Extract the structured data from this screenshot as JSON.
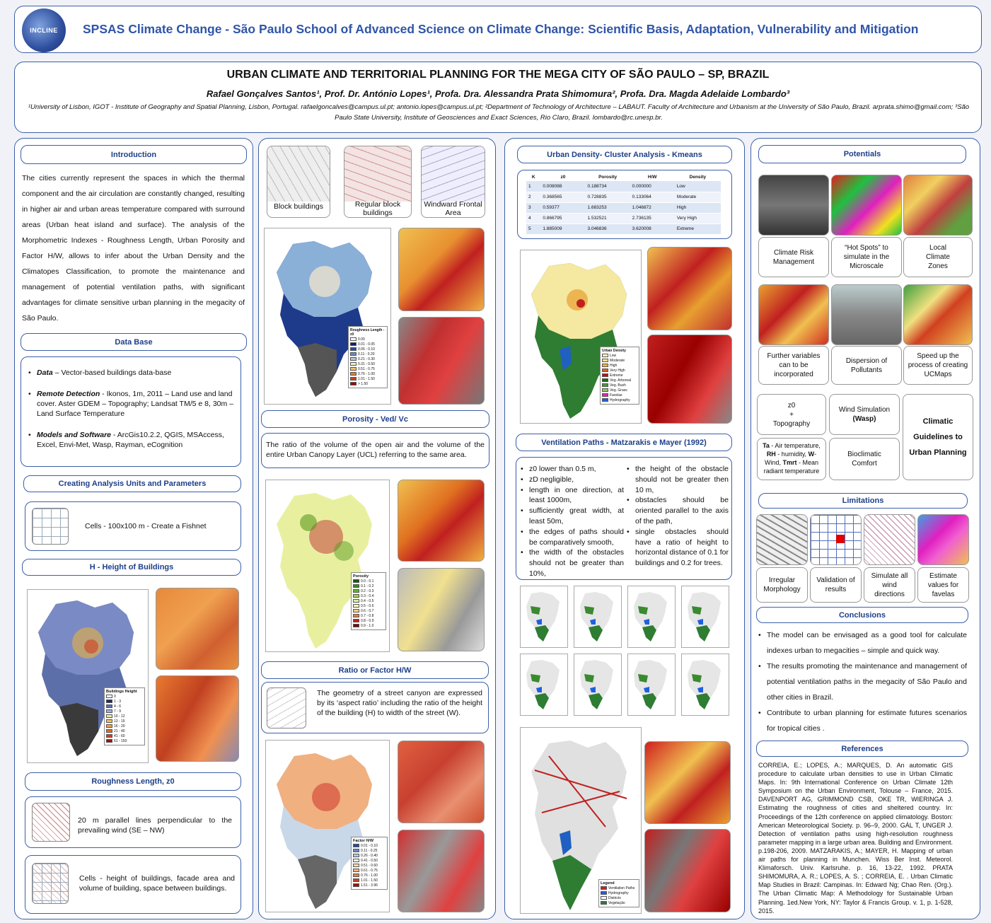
{
  "banner": {
    "logo_text": "INCLINE",
    "title": "SPSAS Climate Change - São Paulo School of Advanced Science on Climate Change: Scientific Basis, Adaptation, Vulnerability and Mitigation"
  },
  "header": {
    "title": "URBAN CLIMATE AND TERRITORIAL PLANNING FOR THE MEGA CITY OF SÃO PAULO – SP, BRAZIL",
    "authors": "Rafael Gonçalves Santos¹, Prof. Dr. António Lopes¹, Profa. Dra. Alessandra Prata Shimomura², Profa. Dra. Magda Adelaide Lombardo³",
    "affiliations": "¹University of Lisbon, IGOT - Institute of Geography and Spatial Planning, Lisbon, Portugal. rafaelgoncalves@campus.ul.pt; antonio.lopes@campus.ul.pt; ²Department of Technology of Architecture – LABAUT. Faculty of Architecture and Urbanism at the University of São Paulo, Brazil. arprata.shimo@gmail.com; ³São Paulo State University, Institute of Geosciences and Exact Sciences, Rio Claro, Brazil. lombardo@rc.unesp.br."
  },
  "col1": {
    "intro_heading": "Introduction",
    "intro_text": "The cities currently represent the spaces in which the thermal component and the air circulation are constantly changed, resulting in higher air and urban areas temperature compared with surround areas (Urban heat island and surface). The analysis of the Morphometric Indexes - Roughness Length, Urban Porosity and Factor H/W, allows to infer about the Urban Density and the Climatopes Classification, to promote the maintenance and management of potential ventilation paths, with significant advantages for climate sensitive urban planning in the megacity of São Paulo.",
    "database_heading": "Data Base",
    "db_items": [
      {
        "label": "Data",
        "text": " – Vector-based buildings data-base"
      },
      {
        "label": "Remote Detection",
        "text": " - Ikonos, 1m, 2011 – Land use and land cover. Aster GDEM – Topography; Landsat TM/5 e 8, 30m – Land Surface Temperature"
      },
      {
        "label": "Models and Software",
        "text": " - ArcGis10.2.2, QGIS, MSAccess, Excel, Envi-Met, Wasp, Rayman, eCognition"
      }
    ],
    "units_heading": "Creating Analysis Units and Parameters",
    "cells_text": "Cells -  100x100 m - Create a Fishnet",
    "height_heading": "H - Height of Buildings",
    "height_legend_title": "Buildings Height",
    "height_legend": [
      "0",
      "1 - 3",
      "4 - 6",
      "7 - 9",
      "10 - 12",
      "13 - 15",
      "16 - 20",
      "21 - 40",
      "41 - 60",
      "61 - 150"
    ],
    "roughness_heading": "Roughness Length, z0",
    "rough_text1": "20 m parallel lines perpendicular to the prevailing wind (SE – NW)",
    "rough_text2": "Cells - height of buildings, facade area and volume of building, space between buildings."
  },
  "col2": {
    "thumb_labels": [
      "Block buildings",
      "Regular block buildings",
      "Windward Frontal Area"
    ],
    "rl_legend_title": "Roughness Length - z0",
    "rl_legend": [
      "0.00",
      "0.01 - 0.05",
      "0.06 - 0.10",
      "0.11 - 0.20",
      "0.21 - 0.30",
      "0.31 - 0.50",
      "0.51 - 0.75",
      "0.76 - 1.00",
      "1.01 - 1.50",
      "> 1.50"
    ],
    "porosity_heading": "Porosity - Ved/ Vc",
    "porosity_text": "The ratio of the volume of the open air and the volume of the entire Urban Canopy Layer (UCL) referring to the same area.",
    "por_legend_title": "Porosity",
    "por_legend": [
      "0.0 - 0.1",
      "0.1 - 0.2",
      "0.2 - 0.3",
      "0.3 - 0.4",
      "0.4 - 0.5",
      "0.5 - 0.6",
      "0.6 - 0.7",
      "0.7 - 0.8",
      "0.8 - 0.9",
      "0.9 - 1.0"
    ],
    "hw_heading": "Ratio or Factor H/W",
    "hw_text": "The geometry of a street canyon are expressed by its ‘aspect ratio’ including the ratio of the height of the building (H) to width of the street (W).",
    "hw_legend_title": "Factor H/W",
    "hw_legend": [
      "0.01 - 0.10",
      "0.11 - 0.25",
      "0.26 - 0.40",
      "0.41 - 0.50",
      "0.51 - 0.60",
      "0.61 - 0.75",
      "0.76 - 1.00",
      "1.01 - 1.50",
      "1.51 - 3.96"
    ]
  },
  "col3": {
    "density_heading": "Urban Density- Cluster Analysis - Kmeans",
    "table_headers": [
      "K",
      "z0",
      "Porosity",
      "H/W",
      "Density"
    ],
    "table_rows": [
      [
        "1",
        "0.008088",
        "0.188734",
        "0.000000",
        "Low"
      ],
      [
        "2",
        "0.368565",
        "0.728835",
        "0.133064",
        "Moderate"
      ],
      [
        "3",
        "0.59377",
        "1.683253",
        "1.046872",
        "High"
      ],
      [
        "4",
        "0.866795",
        "1.532521",
        "2.736135",
        "Very High"
      ],
      [
        "5",
        "1.885009",
        "3.046836",
        "3.620008",
        "Extreme"
      ]
    ],
    "density_legend_title": "Urban Density",
    "density_legend": [
      "Low",
      "Moderate",
      "High",
      "Very High",
      "Extreme",
      "Veg. Arboreal",
      "Veg. Bush",
      "Veg. Grass",
      "Favelas",
      "Hydrography"
    ],
    "vent_heading": "Ventilation Paths - Matzarakis e Mayer (1992)",
    "vent_left": [
      "z0 lower than 0.5 m,",
      "zD negligible,",
      "length in one direction, at least 1000m,",
      "sufficiently great width, at least 50m,",
      "the edges of paths should be comparatively smooth,",
      "the width of the obstacles should not be greater than 10%,"
    ],
    "vent_right": [
      "the height of the obstacle should not be greater then 10 m,",
      "obstacles should be oriented parallel to the axis of the path,",
      "single obstacles should have a ratio of height to horizontal distance of 0.1 for buildings and 0.2 for trees."
    ],
    "vent_legend_title": "Legend",
    "vent_legend": [
      "Ventilation Paths",
      "Hydrography",
      "Districts",
      "Vegetação"
    ]
  },
  "col4": {
    "potentials_heading": "Potentials",
    "potentials": [
      "Climate Risk Management",
      "“Hot Spots” to simulate in the Microscale",
      "Local Climate Zones",
      "Further variables can to be incorporated",
      "Dispersion of Pollutants",
      "Speed up the process of creating UCMaps"
    ],
    "flow": {
      "z0": "z0",
      "plus": "+",
      "topo": "Topography",
      "wind_sim": "Wind Simulation",
      "wasp": "(Wasp)",
      "climatic": "Climatic Guidelines to Urban Planning",
      "ta": "Ta",
      "ta_desc": " - Air temperature,",
      "rh": "RH",
      "rh_desc": " - humidity,",
      "w": "W",
      "w_desc": "-Wind,",
      "tmrt": "Tmrt",
      "tmrt_desc": " - Mean radiant temperature",
      "bio": "Bioclimatic Comfort"
    },
    "limitations_heading": "Limitations",
    "limitations": [
      "Irregular Morphology",
      "Validation of results",
      "Simulate all wind directions",
      "Estimate values for favelas"
    ],
    "conclusions_heading": "Conclusions",
    "conclusions": [
      "The model can be envisaged as a good tool for calculate indexes urban to megacities – simple and quick way.",
      "The results promoting the maintenance and management of potential ventilation paths in the megacity of São Paulo and other cities in Brazil.",
      "Contribute to urban planning for estimate futures scenarios for tropical cities ."
    ],
    "references_heading": "References",
    "references": "CORREIA, E.; LOPES, A.; MARQUES, D. An automatic GIS procedure to calculate urban densities to use in Urban Climatic Maps. In: 9th International Conference on Urban Climate 12th Symposium on the Urban Environment, Tolouse – France, 2015. DAVENPORT AG, GRIMMOND CSB, OKE TR, WIERINGA J. Estimating the roughness of cities and sheltered country. In: Proceedings of the 12th conference on applied climatology. Boston: American Meteorological Society. p. 96–9, 2000. GÁL T, UNGER J. Detection of ventilation paths using high-resolution roughness parameter mapping in a large urban area. Building and Environment. p.198-206, 2009. MATZARAKIS, A.; MAYER, H. Mapping of urban air paths for planning in Munchen. Wiss Ber Inst. Meteorol. Klimaforsch. Univ. Karlsruhe. p. 16, 13-22, 1992. PRATA SHIMOMURA, A. R.; LOPES, A. S. ; CORREIA, E. . Urban Climatic Map Studies in Brazil: Campinas. In: Edward Ng; Chao Ren. (Org.). The Urban Climatic Map: A Methodology for Sustainable Urban Planning. 1ed.New York, NY: Taylor & Francis Group. v. 1, p. 1-528, 2015."
  }
}
